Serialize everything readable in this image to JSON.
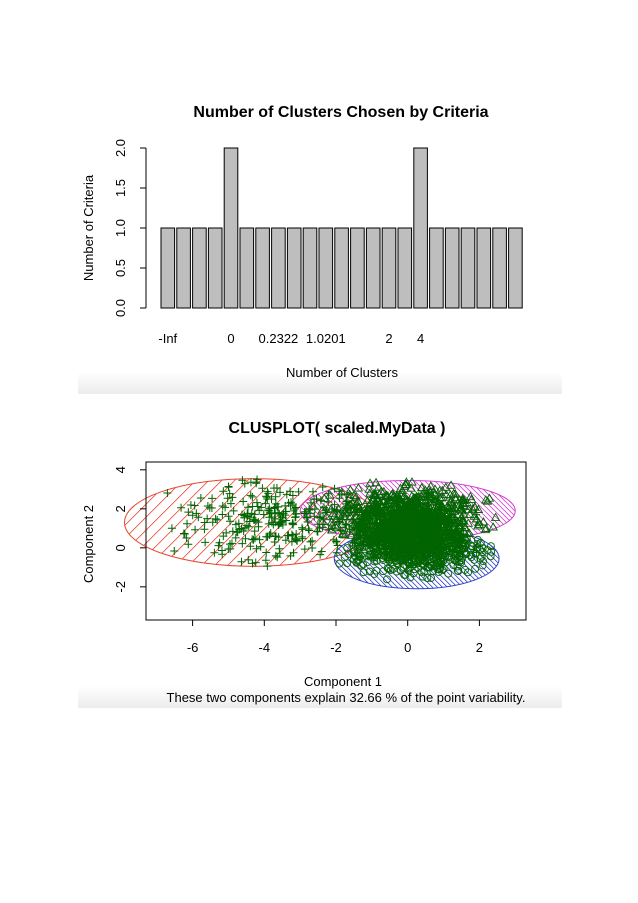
{
  "chart_data": [
    {
      "type": "bar",
      "title": "Number of Clusters Chosen by Criteria",
      "xlabel": "Number of Clusters",
      "ylabel": "Number of Criteria",
      "ylim": [
        0,
        2
      ],
      "yticks": [
        "0.0",
        "0.5",
        "1.0",
        "1.5",
        "2.0"
      ],
      "x_tick_labels": [
        "-Inf",
        "0",
        "0.2322",
        "1.0201",
        "2",
        "4"
      ],
      "x_tick_label_bar_index": [
        0,
        4,
        7,
        10,
        14,
        16
      ],
      "values": [
        1,
        1,
        1,
        1,
        2,
        1,
        1,
        1,
        1,
        1,
        1,
        1,
        1,
        1,
        1,
        1,
        2,
        1,
        1,
        1,
        1,
        1,
        1
      ],
      "bar_color": "#bebebe",
      "grid": false
    },
    {
      "type": "scatter",
      "title": "CLUSPLOT( scaled.MyData )",
      "xlabel": "Component 1",
      "ylabel": "Component 2",
      "subtitle": "These two components explain 32.66 % of the point variability.",
      "xlim": [
        -7.3,
        3.3
      ],
      "ylim": [
        -3.7,
        4.4
      ],
      "xticks": [
        "-6",
        "-4",
        "-2",
        "0",
        "2"
      ],
      "yticks": [
        "-2",
        "0",
        "2",
        "4"
      ],
      "point_color": "#006400",
      "clusters": [
        {
          "marker": "+",
          "ellipse_color": "#e8452f",
          "center": [
            -4.3,
            1.3
          ],
          "semi_axes": [
            3.6,
            2.25
          ],
          "shading": "hatched"
        },
        {
          "marker": "triangle",
          "ellipse_color": "#d23cd2",
          "center": [
            0.0,
            1.9
          ],
          "semi_axes": [
            3.0,
            1.55
          ],
          "shading": "hatched"
        },
        {
          "marker": "circle",
          "ellipse_color": "#2a3fc7",
          "center": [
            0.25,
            -0.55
          ],
          "semi_axes": [
            2.3,
            1.55
          ],
          "shading": "hatched"
        }
      ],
      "grid": false
    }
  ]
}
